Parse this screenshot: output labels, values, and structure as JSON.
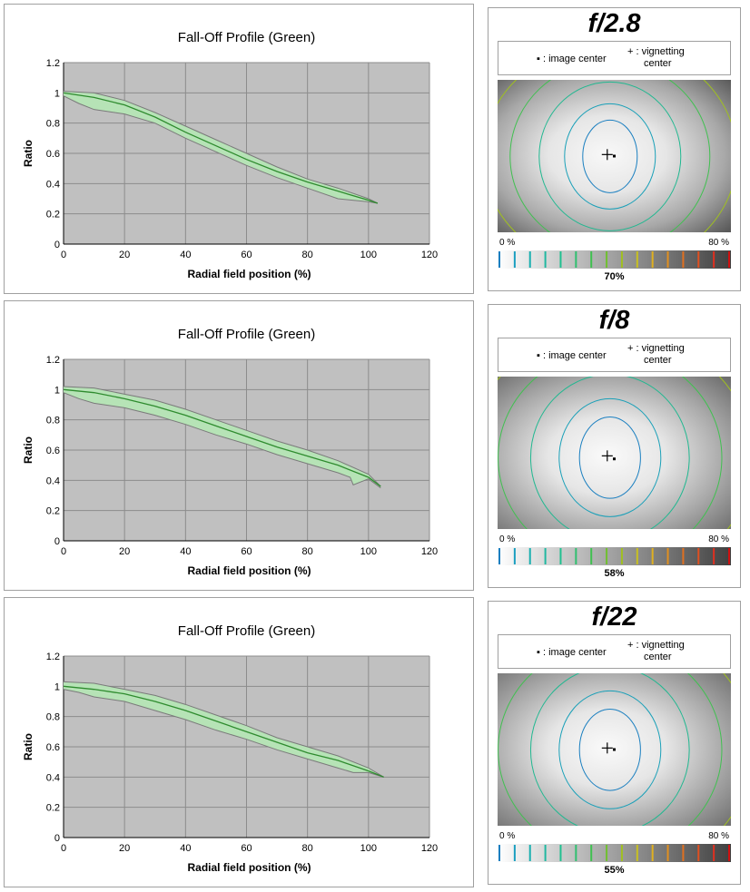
{
  "panels": [
    {
      "chart_data": {
        "type": "area",
        "title": "Fall-Off Profile (Green)",
        "xlabel": "Radial field position (%)",
        "ylabel": "Ratio",
        "xlim": [
          0,
          120
        ],
        "ylim": [
          0,
          1.2
        ],
        "xticks": [
          "0",
          "20",
          "40",
          "60",
          "80",
          "100",
          "120"
        ],
        "yticks": [
          "0",
          "0.2",
          "0.4",
          "0.6",
          "0.8",
          "1",
          "1.2"
        ],
        "grid": true,
        "series": [
          {
            "role": "mean",
            "color": "#2e8b2e",
            "x": [
              0,
              10,
              20,
              30,
              40,
              50,
              60,
              70,
              80,
              90,
              100,
              103
            ],
            "y": [
              1.0,
              0.97,
              0.92,
              0.84,
              0.74,
              0.65,
              0.56,
              0.48,
              0.41,
              0.35,
              0.29,
              0.27
            ]
          },
          {
            "role": "upper",
            "color": "#7a7a7a",
            "x": [
              0,
              10,
              20,
              30,
              40,
              50,
              60,
              70,
              80,
              90,
              100,
              103
            ],
            "y": [
              1.01,
              1.0,
              0.95,
              0.87,
              0.78,
              0.69,
              0.6,
              0.51,
              0.43,
              0.37,
              0.3,
              0.27
            ]
          },
          {
            "role": "lower",
            "color": "#7a7a7a",
            "x": [
              0,
              5,
              10,
              20,
              30,
              40,
              50,
              60,
              70,
              80,
              90,
              100,
              103
            ],
            "y": [
              0.98,
              0.93,
              0.89,
              0.86,
              0.8,
              0.7,
              0.61,
              0.52,
              0.44,
              0.37,
              0.3,
              0.28,
              0.27
            ]
          }
        ]
      },
      "fstop": "f/2.8",
      "legend": {
        "center_text": "▪ : image center",
        "vig_line1": "+ : vignetting",
        "vig_line2": "center"
      },
      "scale": {
        "left_label": "0 %",
        "right_label": "80 %"
      },
      "percent": "70%",
      "map": {
        "center_fill": "#f8f8f8",
        "edge_fill": "#5a5a5a",
        "cross": [
          0.47,
          0.49
        ],
        "dot": [
          0.5,
          0.5
        ]
      }
    },
    {
      "chart_data": {
        "type": "area",
        "title": "Fall-Off Profile (Green)",
        "xlabel": "Radial field position (%)",
        "ylabel": "Ratio",
        "xlim": [
          0,
          120
        ],
        "ylim": [
          0,
          1.2
        ],
        "xticks": [
          "0",
          "20",
          "40",
          "60",
          "80",
          "100",
          "120"
        ],
        "yticks": [
          "0",
          "0.2",
          "0.4",
          "0.6",
          "0.8",
          "1",
          "1.2"
        ],
        "grid": true,
        "series": [
          {
            "role": "mean",
            "color": "#2e8b2e",
            "x": [
              0,
              10,
              20,
              30,
              40,
              50,
              60,
              70,
              80,
              90,
              100,
              104
            ],
            "y": [
              1.0,
              0.98,
              0.94,
              0.89,
              0.83,
              0.76,
              0.69,
              0.62,
              0.56,
              0.5,
              0.42,
              0.36
            ]
          },
          {
            "role": "upper",
            "color": "#7a7a7a",
            "x": [
              0,
              10,
              20,
              30,
              40,
              50,
              60,
              70,
              80,
              90,
              100,
              104
            ],
            "y": [
              1.02,
              1.01,
              0.97,
              0.93,
              0.87,
              0.8,
              0.73,
              0.66,
              0.6,
              0.53,
              0.44,
              0.36
            ]
          },
          {
            "role": "lower",
            "color": "#7a7a7a",
            "x": [
              0,
              5,
              10,
              20,
              30,
              40,
              50,
              60,
              70,
              80,
              90,
              94,
              95,
              100,
              104
            ],
            "y": [
              0.98,
              0.94,
              0.91,
              0.88,
              0.83,
              0.77,
              0.7,
              0.64,
              0.57,
              0.51,
              0.45,
              0.42,
              0.37,
              0.41,
              0.35
            ]
          }
        ]
      },
      "fstop": "f/8",
      "legend": {
        "center_text": "▪ : image center",
        "vig_line1": "+ : vignetting",
        "vig_line2": "center"
      },
      "scale": {
        "left_label": "0 %",
        "right_label": "80 %"
      },
      "percent": "58%",
      "map": {
        "center_fill": "#fafafa",
        "edge_fill": "#6e6e6e",
        "cross": [
          0.47,
          0.52
        ],
        "dot": [
          0.5,
          0.54
        ]
      }
    },
    {
      "chart_data": {
        "type": "area",
        "title": "Fall-Off Profile (Green)",
        "xlabel": "Radial field position (%)",
        "ylabel": "Ratio",
        "xlim": [
          0,
          120
        ],
        "ylim": [
          0,
          1.2
        ],
        "xticks": [
          "0",
          "20",
          "40",
          "60",
          "80",
          "100",
          "120"
        ],
        "yticks": [
          "0",
          "0.2",
          "0.4",
          "0.6",
          "0.8",
          "1",
          "1.2"
        ],
        "grid": true,
        "series": [
          {
            "role": "mean",
            "color": "#2e8b2e",
            "x": [
              0,
              10,
              20,
              30,
              40,
              50,
              60,
              70,
              80,
              90,
              100,
              105
            ],
            "y": [
              1.0,
              0.98,
              0.95,
              0.9,
              0.84,
              0.77,
              0.7,
              0.63,
              0.56,
              0.51,
              0.44,
              0.4
            ]
          },
          {
            "role": "upper",
            "color": "#7a7a7a",
            "x": [
              0,
              10,
              20,
              30,
              40,
              50,
              60,
              70,
              80,
              90,
              100,
              105
            ],
            "y": [
              1.03,
              1.02,
              0.98,
              0.94,
              0.88,
              0.81,
              0.74,
              0.66,
              0.6,
              0.54,
              0.46,
              0.4
            ]
          },
          {
            "role": "lower",
            "color": "#7a7a7a",
            "x": [
              0,
              5,
              10,
              20,
              30,
              40,
              50,
              60,
              70,
              80,
              90,
              95,
              100,
              105
            ],
            "y": [
              0.98,
              0.96,
              0.93,
              0.9,
              0.84,
              0.78,
              0.71,
              0.65,
              0.58,
              0.52,
              0.46,
              0.43,
              0.43,
              0.4
            ]
          }
        ]
      },
      "fstop": "f/22",
      "legend": {
        "center_text": "▪ : image center",
        "vig_line1": "+ : vignetting",
        "vig_line2": "center"
      },
      "scale": {
        "left_label": "0 %",
        "right_label": "80 %"
      },
      "percent": "55%",
      "map": {
        "center_fill": "#fafafa",
        "edge_fill": "#727272",
        "cross": [
          0.47,
          0.49
        ],
        "dot": [
          0.5,
          0.5
        ]
      }
    }
  ],
  "scale_colors": [
    "#1a7fc0",
    "#1a9fc0",
    "#1aafb0",
    "#20b8a0",
    "#20c090",
    "#30c070",
    "#40c050",
    "#70c030",
    "#a0c020",
    "#c8c020",
    "#e0b020",
    "#e09020",
    "#e07020",
    "#e05020",
    "#e03020",
    "#d01010"
  ]
}
